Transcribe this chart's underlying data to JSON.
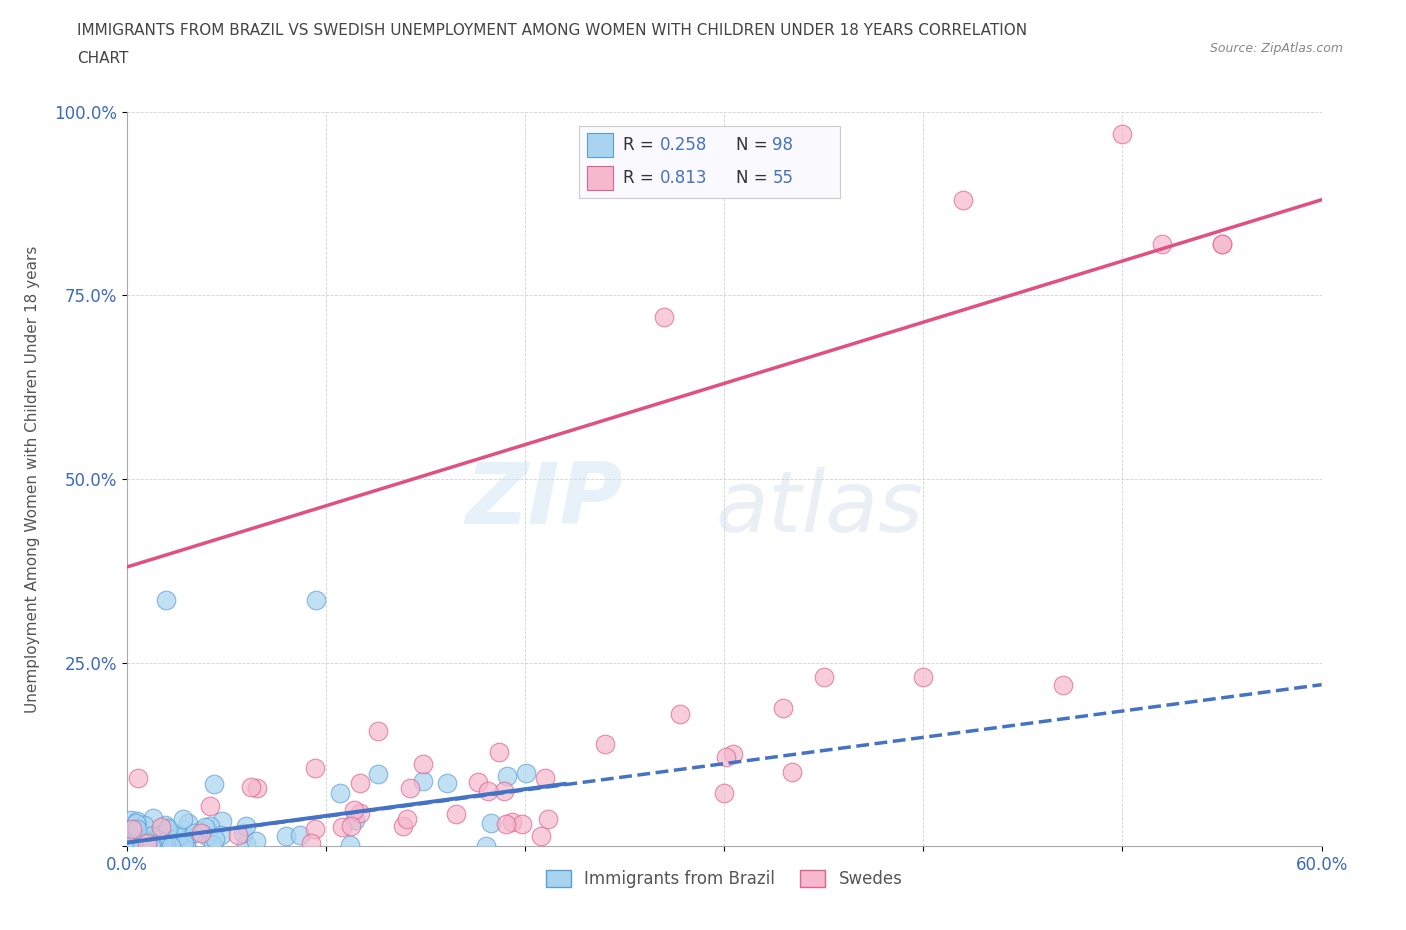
{
  "title_line1": "IMMIGRANTS FROM BRAZIL VS SWEDISH UNEMPLOYMENT AMONG WOMEN WITH CHILDREN UNDER 18 YEARS CORRELATION",
  "title_line2": "CHART",
  "source": "Source: ZipAtlas.com",
  "ylabel": "Unemployment Among Women with Children Under 18 years",
  "xlabel": "",
  "xlim": [
    0,
    0.6
  ],
  "ylim": [
    0,
    1.0
  ],
  "xticks": [
    0.0,
    0.1,
    0.2,
    0.3,
    0.4,
    0.5,
    0.6
  ],
  "yticks": [
    0.0,
    0.25,
    0.5,
    0.75,
    1.0
  ],
  "xticklabels": [
    "0.0%",
    "",
    "",
    "",
    "",
    "",
    "60.0%"
  ],
  "yticklabels": [
    "",
    "25.0%",
    "50.0%",
    "75.0%",
    "100.0%"
  ],
  "brazil_color": "#a8d4f0",
  "brazil_edge": "#5a9fd4",
  "swedes_color": "#f5b8cc",
  "swedes_edge": "#e06090",
  "brazil_line_color": "#4472c4",
  "swedes_line_color": "#e05080",
  "brazil_R": 0.258,
  "brazil_N": 98,
  "swedes_R": 0.813,
  "swedes_N": 55,
  "brazil_trend_x": [
    0.0,
    0.6
  ],
  "brazil_trend_y": [
    0.005,
    0.22
  ],
  "swedes_trend_x": [
    0.0,
    0.6
  ],
  "swedes_trend_y": [
    0.38,
    0.88
  ],
  "watermark_zip": "ZIP",
  "watermark_atlas": "atlas",
  "background_color": "#ffffff",
  "legend_color": "#4472c4",
  "title_color": "#444444"
}
